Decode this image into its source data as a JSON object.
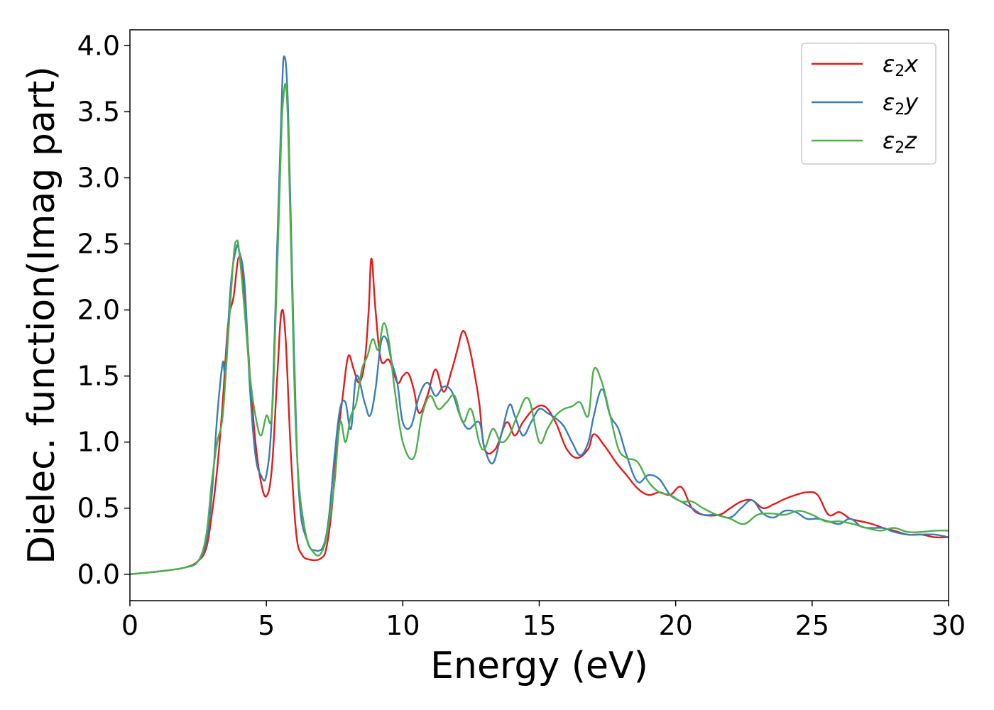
{
  "chart_data": {
    "type": "line",
    "title": "",
    "xlabel": "Energy (eV)",
    "ylabel": "Dielec. function(Imag part)",
    "xlim": [
      0,
      30
    ],
    "ylim": [
      -0.2,
      4.12
    ],
    "xticks": [
      0,
      5,
      10,
      15,
      20,
      25,
      30
    ],
    "xtick_labels": [
      "0",
      "5",
      "10",
      "15",
      "20",
      "25",
      "30"
    ],
    "yticks": [
      0.0,
      0.5,
      1.0,
      1.5,
      2.0,
      2.5,
      3.0,
      3.5,
      4.0
    ],
    "ytick_labels": [
      "0.0",
      "0.5",
      "1.0",
      "1.5",
      "2.0",
      "2.5",
      "3.0",
      "3.5",
      "4.0"
    ],
    "grid": false,
    "legend_position": "top-right",
    "series": [
      {
        "name": "ε2x",
        "legend_base": "ε",
        "legend_sub": "2",
        "legend_tail": "x",
        "color": "#e41a1c",
        "x": [
          0,
          1,
          2,
          2.5,
          2.8,
          3.0,
          3.2,
          3.4,
          3.6,
          3.8,
          4.0,
          4.2,
          4.4,
          4.6,
          4.8,
          5.0,
          5.2,
          5.4,
          5.55,
          5.7,
          5.9,
          6.1,
          6.3,
          6.6,
          7.0,
          7.2,
          7.4,
          7.6,
          7.8,
          8.0,
          8.2,
          8.4,
          8.6,
          8.75,
          8.85,
          9.0,
          9.2,
          9.5,
          9.8,
          10.0,
          10.2,
          10.4,
          10.6,
          10.9,
          11.2,
          11.5,
          11.8,
          12.0,
          12.2,
          12.4,
          12.6,
          12.8,
          13.0,
          13.4,
          13.8,
          14.1,
          14.4,
          14.8,
          15.2,
          15.6,
          16.0,
          16.4,
          16.8,
          17.0,
          17.4,
          17.8,
          18.2,
          18.6,
          19.0,
          19.4,
          19.8,
          20.2,
          20.6,
          21.0,
          21.6,
          22.0,
          22.4,
          22.8,
          23.2,
          23.6,
          24.0,
          24.4,
          24.8,
          25.2,
          25.6,
          26.0,
          26.4,
          26.8,
          27.2,
          27.6,
          28.0,
          28.5,
          29.0,
          29.5,
          30.0
        ],
        "y": [
          0.0,
          0.02,
          0.05,
          0.1,
          0.2,
          0.45,
          0.8,
          1.3,
          1.9,
          2.1,
          2.4,
          2.1,
          1.5,
          1.0,
          0.7,
          0.59,
          0.8,
          1.5,
          1.98,
          1.8,
          0.9,
          0.3,
          0.15,
          0.11,
          0.12,
          0.2,
          0.5,
          1.0,
          1.35,
          1.65,
          1.55,
          1.45,
          1.6,
          2.0,
          2.39,
          2.0,
          1.62,
          1.62,
          1.45,
          1.5,
          1.52,
          1.4,
          1.22,
          1.35,
          1.55,
          1.38,
          1.55,
          1.7,
          1.84,
          1.75,
          1.55,
          1.3,
          0.95,
          0.95,
          1.15,
          1.05,
          1.15,
          1.25,
          1.27,
          1.15,
          0.95,
          0.88,
          0.95,
          1.06,
          0.97,
          0.85,
          0.75,
          0.65,
          0.6,
          0.62,
          0.6,
          0.66,
          0.5,
          0.45,
          0.45,
          0.5,
          0.55,
          0.56,
          0.5,
          0.53,
          0.57,
          0.6,
          0.62,
          0.6,
          0.45,
          0.47,
          0.42,
          0.4,
          0.38,
          0.35,
          0.33,
          0.3,
          0.3,
          0.28,
          0.28
        ]
      },
      {
        "name": "ε2y",
        "legend_base": "ε",
        "legend_sub": "2",
        "legend_tail": "y",
        "color": "#377eb8",
        "x": [
          0,
          1,
          2,
          2.5,
          2.8,
          3.0,
          3.2,
          3.4,
          3.5,
          3.7,
          3.9,
          4.0,
          4.2,
          4.4,
          4.6,
          4.8,
          5.0,
          5.2,
          5.4,
          5.55,
          5.65,
          5.8,
          6.0,
          6.2,
          6.5,
          6.8,
          7.1,
          7.3,
          7.5,
          7.7,
          7.9,
          8.1,
          8.3,
          8.6,
          8.8,
          9.0,
          9.2,
          9.4,
          9.6,
          9.8,
          10.0,
          10.3,
          10.6,
          10.9,
          11.2,
          11.5,
          11.8,
          12.1,
          12.4,
          12.8,
          13.0,
          13.3,
          13.6,
          13.9,
          14.1,
          14.4,
          14.7,
          15.0,
          15.3,
          15.6,
          15.9,
          16.2,
          16.5,
          16.8,
          17.0,
          17.3,
          17.6,
          17.9,
          18.2,
          18.6,
          19.0,
          19.4,
          19.8,
          20.2,
          20.6,
          21.0,
          21.5,
          22.0,
          22.4,
          22.8,
          23.2,
          23.6,
          24.0,
          24.4,
          24.8,
          25.2,
          25.6,
          26.0,
          26.4,
          26.8,
          27.2,
          27.6,
          28.0,
          28.5,
          29.0,
          29.5,
          30.0
        ],
        "y": [
          0.0,
          0.02,
          0.05,
          0.1,
          0.25,
          0.6,
          1.2,
          1.6,
          1.55,
          2.2,
          2.47,
          2.45,
          2.2,
          1.4,
          0.9,
          0.75,
          0.75,
          1.2,
          2.5,
          3.5,
          3.92,
          3.5,
          1.8,
          0.6,
          0.25,
          0.18,
          0.22,
          0.45,
          0.9,
          1.25,
          1.3,
          1.1,
          1.5,
          1.3,
          1.2,
          1.4,
          1.75,
          1.78,
          1.6,
          1.45,
          1.15,
          1.12,
          1.35,
          1.45,
          1.35,
          1.42,
          1.38,
          1.2,
          1.1,
          1.15,
          0.95,
          0.84,
          1.05,
          1.28,
          1.2,
          1.05,
          1.15,
          1.25,
          1.22,
          1.18,
          1.12,
          1.0,
          0.9,
          1.0,
          1.2,
          1.4,
          1.2,
          1.1,
          0.9,
          0.7,
          0.75,
          0.72,
          0.6,
          0.55,
          0.5,
          0.45,
          0.45,
          0.43,
          0.5,
          0.56,
          0.46,
          0.43,
          0.48,
          0.47,
          0.42,
          0.42,
          0.4,
          0.38,
          0.42,
          0.36,
          0.35,
          0.35,
          0.32,
          0.3,
          0.3,
          0.3,
          0.28
        ]
      },
      {
        "name": "ε2z",
        "legend_base": "ε",
        "legend_sub": "2",
        "legend_tail": "z",
        "color": "#4daf4a",
        "x": [
          0,
          1,
          2,
          2.5,
          2.8,
          3.0,
          3.2,
          3.4,
          3.6,
          3.8,
          3.9,
          4.0,
          4.2,
          4.4,
          4.6,
          4.8,
          5.0,
          5.2,
          5.35,
          5.5,
          5.6,
          5.75,
          5.9,
          6.1,
          6.4,
          6.8,
          7.1,
          7.3,
          7.5,
          7.7,
          7.9,
          8.1,
          8.3,
          8.5,
          8.7,
          8.9,
          9.1,
          9.3,
          9.5,
          9.7,
          10.0,
          10.4,
          10.7,
          11.0,
          11.3,
          11.6,
          11.9,
          12.2,
          12.5,
          12.8,
          13.0,
          13.3,
          13.6,
          13.9,
          14.2,
          14.6,
          15.0,
          15.3,
          15.6,
          15.9,
          16.2,
          16.5,
          16.8,
          17.0,
          17.3,
          17.6,
          17.9,
          18.2,
          18.6,
          19.0,
          19.4,
          19.8,
          20.2,
          20.6,
          21.0,
          21.5,
          22.0,
          22.5,
          23.0,
          23.5,
          24.0,
          24.5,
          25.0,
          25.5,
          26.0,
          26.5,
          27.0,
          27.5,
          28.0,
          28.5,
          29.0,
          29.5,
          30.0
        ],
        "y": [
          0.0,
          0.02,
          0.05,
          0.1,
          0.3,
          0.7,
          1.0,
          1.2,
          1.8,
          2.4,
          2.52,
          2.45,
          2.0,
          1.5,
          1.2,
          1.05,
          1.2,
          1.2,
          2.0,
          3.0,
          3.55,
          3.62,
          2.5,
          1.0,
          0.35,
          0.15,
          0.2,
          0.4,
          0.7,
          1.15,
          1.0,
          1.2,
          1.3,
          1.55,
          1.65,
          1.78,
          1.7,
          1.9,
          1.75,
          1.4,
          1.0,
          0.88,
          1.2,
          1.35,
          1.25,
          1.3,
          1.35,
          1.15,
          1.25,
          1.0,
          0.95,
          1.1,
          1.0,
          1.05,
          1.2,
          1.33,
          1.0,
          1.1,
          1.2,
          1.25,
          1.27,
          1.3,
          1.2,
          1.55,
          1.45,
          1.2,
          0.95,
          0.88,
          0.85,
          0.7,
          0.62,
          0.6,
          0.55,
          0.55,
          0.5,
          0.45,
          0.42,
          0.38,
          0.45,
          0.46,
          0.45,
          0.48,
          0.45,
          0.4,
          0.4,
          0.38,
          0.35,
          0.33,
          0.35,
          0.32,
          0.32,
          0.33,
          0.33
        ]
      }
    ]
  }
}
